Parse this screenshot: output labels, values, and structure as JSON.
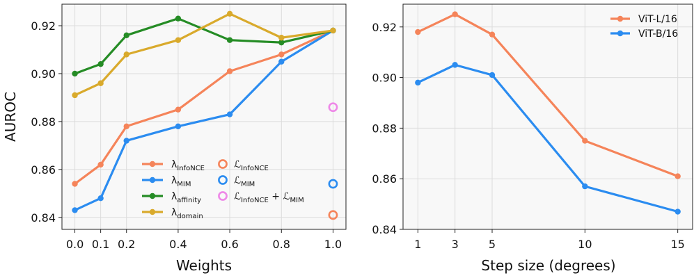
{
  "chart_data": [
    {
      "type": "line",
      "xlabel": "Weights",
      "ylabel": "AUROC",
      "xlim": [
        -0.05,
        1.05
      ],
      "ylim": [
        0.835,
        0.929
      ],
      "xticks": [
        0.0,
        0.1,
        0.2,
        0.4,
        0.6,
        0.8,
        1.0
      ],
      "xtick_labels": [
        "0.0",
        "0.1",
        "0.2",
        "0.4",
        "0.6",
        "0.8",
        "1.0"
      ],
      "yticks": [
        0.84,
        0.86,
        0.88,
        0.9,
        0.92
      ],
      "ytick_labels": [
        "0.84",
        "0.86",
        "0.88",
        "0.90",
        "0.92"
      ],
      "grid": true,
      "legend_position": "lower-center",
      "series": [
        {
          "key": "lambda-infonce",
          "name": "λ",
          "sub": "InfoNCE",
          "color": "#f5845a",
          "x": [
            0.0,
            0.1,
            0.2,
            0.4,
            0.6,
            0.8,
            1.0
          ],
          "values": [
            0.854,
            0.862,
            0.878,
            0.885,
            0.901,
            0.908,
            0.918
          ]
        },
        {
          "key": "lambda-mim",
          "name": "λ",
          "sub": "MIM",
          "color": "#2b8cf0",
          "x": [
            0.0,
            0.1,
            0.2,
            0.4,
            0.6,
            0.8,
            1.0
          ],
          "values": [
            0.843,
            0.848,
            0.872,
            0.878,
            0.883,
            0.905,
            0.918
          ]
        },
        {
          "key": "lambda-affinity",
          "name": "λ",
          "sub": "affinity",
          "color": "#258c25",
          "x": [
            0.0,
            0.1,
            0.2,
            0.4,
            0.6,
            0.8,
            1.0
          ],
          "values": [
            0.9,
            0.904,
            0.916,
            0.923,
            0.914,
            0.913,
            0.918
          ]
        },
        {
          "key": "lambda-domain",
          "name": "λ",
          "sub": "domain",
          "color": "#d9aa2c",
          "x": [
            0.0,
            0.1,
            0.2,
            0.4,
            0.6,
            0.8,
            1.0
          ],
          "values": [
            0.891,
            0.896,
            0.908,
            0.914,
            0.925,
            0.915,
            0.918
          ]
        }
      ],
      "markers": [
        {
          "key": "loss-infonce",
          "name": "ℒ",
          "sub": "InfoNCE",
          "color": "#f5845a",
          "x": 1.0,
          "value": 0.841
        },
        {
          "key": "loss-mim",
          "name": "ℒ",
          "sub": "MIM",
          "color": "#2b8cf0",
          "x": 1.0,
          "value": 0.854
        },
        {
          "key": "loss-both",
          "name": "ℒ",
          "sub": "InfoNCE",
          "extra": " + ℒ",
          "sub2": "MIM",
          "color": "#ee88e8",
          "x": 1.0,
          "value": 0.886
        }
      ]
    },
    {
      "type": "line",
      "xlabel": "Step size (degrees)",
      "ylabel": "",
      "xlim": [
        0.2,
        15.8
      ],
      "ylim": [
        0.84,
        0.929
      ],
      "xticks": [
        1,
        3,
        5,
        10,
        15
      ],
      "xtick_labels": [
        "1",
        "3",
        "5",
        "10",
        "15"
      ],
      "yticks": [
        0.84,
        0.86,
        0.88,
        0.9,
        0.92
      ],
      "ytick_labels": [
        "0.84",
        "0.86",
        "0.88",
        "0.90",
        "0.92"
      ],
      "grid": true,
      "legend_position": "top-right",
      "series": [
        {
          "key": "vit-l16",
          "name": "ViT-L/16",
          "color": "#f5845a",
          "x": [
            1,
            3,
            5,
            10,
            15
          ],
          "values": [
            0.918,
            0.925,
            0.917,
            0.875,
            0.861
          ]
        },
        {
          "key": "vit-b16",
          "name": "ViT-B/16",
          "color": "#2b8cf0",
          "x": [
            1,
            3,
            5,
            10,
            15
          ],
          "values": [
            0.898,
            0.905,
            0.901,
            0.857,
            0.847
          ]
        }
      ]
    }
  ]
}
